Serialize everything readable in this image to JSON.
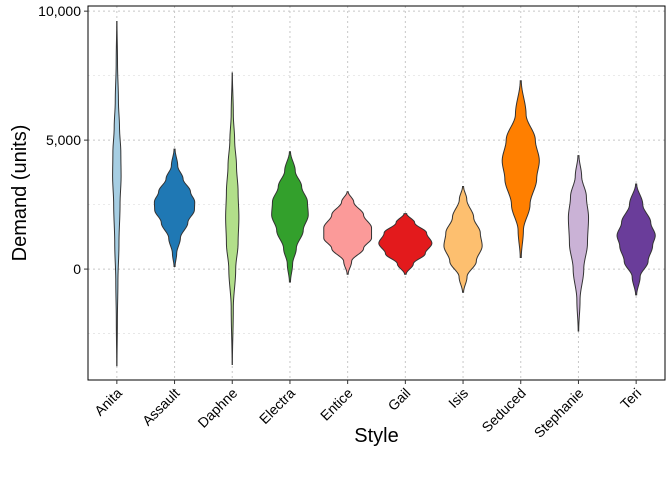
{
  "chart_data": {
    "type": "violin",
    "title": "",
    "xlabel": "Style",
    "ylabel": "Demand (units)",
    "ylim": [
      -4300,
      10200
    ],
    "yticks": [
      0,
      5000,
      10000
    ],
    "ytick_labels": [
      "0",
      "5,000",
      "10,000"
    ],
    "grid": true,
    "legend": "none",
    "categories": [
      "Anita",
      "Assault",
      "Daphne",
      "Electra",
      "Entice",
      "Gail",
      "Isis",
      "Seduced",
      "Stephanie",
      "Teri"
    ],
    "series": [
      {
        "category": "Anita",
        "color": "#a6cee3",
        "min": -3750,
        "max": 9600,
        "profile": [
          [
            -3750,
            0.005
          ],
          [
            -2000,
            0.02
          ],
          [
            -500,
            0.04
          ],
          [
            1000,
            0.08
          ],
          [
            2500,
            0.12
          ],
          [
            3600,
            0.16
          ],
          [
            4500,
            0.15
          ],
          [
            5500,
            0.1
          ],
          [
            6500,
            0.06
          ],
          [
            8000,
            0.025
          ],
          [
            9600,
            0.005
          ]
        ]
      },
      {
        "category": "Assault",
        "color": "#1f78b4",
        "min": 100,
        "max": 4650,
        "profile": [
          [
            100,
            0.02
          ],
          [
            600,
            0.08
          ],
          [
            1200,
            0.22
          ],
          [
            1800,
            0.5
          ],
          [
            2300,
            0.75
          ],
          [
            2600,
            0.76
          ],
          [
            3000,
            0.6
          ],
          [
            3500,
            0.32
          ],
          [
            4000,
            0.12
          ],
          [
            4650,
            0.02
          ]
        ]
      },
      {
        "category": "Daphne",
        "color": "#b2df8a",
        "min": -3700,
        "max": 7600,
        "profile": [
          [
            -3700,
            0.005
          ],
          [
            -1500,
            0.04
          ],
          [
            0,
            0.13
          ],
          [
            1000,
            0.22
          ],
          [
            2000,
            0.25
          ],
          [
            3000,
            0.22
          ],
          [
            4000,
            0.16
          ],
          [
            5000,
            0.09
          ],
          [
            6000,
            0.04
          ],
          [
            7600,
            0.005
          ]
        ]
      },
      {
        "category": "Electra",
        "color": "#33a02c",
        "min": -500,
        "max": 4550,
        "profile": [
          [
            -500,
            0.02
          ],
          [
            200,
            0.1
          ],
          [
            800,
            0.24
          ],
          [
            1500,
            0.5
          ],
          [
            2100,
            0.69
          ],
          [
            2600,
            0.66
          ],
          [
            3200,
            0.44
          ],
          [
            3800,
            0.2
          ],
          [
            4550,
            0.02
          ]
        ]
      },
      {
        "category": "Entice",
        "color": "#fb9a99",
        "min": -200,
        "max": 3000,
        "profile": [
          [
            -200,
            0.02
          ],
          [
            300,
            0.15
          ],
          [
            800,
            0.6
          ],
          [
            1200,
            0.9
          ],
          [
            1600,
            0.9
          ],
          [
            2100,
            0.6
          ],
          [
            2600,
            0.23
          ],
          [
            3000,
            0.02
          ]
        ]
      },
      {
        "category": "Gail",
        "color": "#e31a1c",
        "min": -200,
        "max": 2150,
        "profile": [
          [
            -200,
            0.03
          ],
          [
            200,
            0.3
          ],
          [
            600,
            0.75
          ],
          [
            1000,
            1.0
          ],
          [
            1400,
            0.8
          ],
          [
            1800,
            0.35
          ],
          [
            2150,
            0.05
          ]
        ]
      },
      {
        "category": "Isis",
        "color": "#fdbf6f",
        "min": -900,
        "max": 3200,
        "profile": [
          [
            -900,
            0.02
          ],
          [
            -300,
            0.15
          ],
          [
            300,
            0.5
          ],
          [
            900,
            0.72
          ],
          [
            1400,
            0.65
          ],
          [
            2000,
            0.4
          ],
          [
            2700,
            0.14
          ],
          [
            3200,
            0.02
          ]
        ]
      },
      {
        "category": "Seduced",
        "color": "#ff7f00",
        "min": 450,
        "max": 7300,
        "profile": [
          [
            450,
            0.02
          ],
          [
            1500,
            0.1
          ],
          [
            2500,
            0.35
          ],
          [
            3500,
            0.6
          ],
          [
            4200,
            0.7
          ],
          [
            5000,
            0.55
          ],
          [
            6000,
            0.2
          ],
          [
            7300,
            0.02
          ]
        ]
      },
      {
        "category": "Stephanie",
        "color": "#cab2d6",
        "min": -2400,
        "max": 4400,
        "profile": [
          [
            -2400,
            0.01
          ],
          [
            -1200,
            0.06
          ],
          [
            0,
            0.2
          ],
          [
            1000,
            0.34
          ],
          [
            2000,
            0.38
          ],
          [
            2800,
            0.3
          ],
          [
            3600,
            0.12
          ],
          [
            4400,
            0.02
          ]
        ]
      },
      {
        "category": "Teri",
        "color": "#6a3d9a",
        "min": -1000,
        "max": 3300,
        "profile": [
          [
            -1000,
            0.02
          ],
          [
            -300,
            0.15
          ],
          [
            300,
            0.45
          ],
          [
            900,
            0.62
          ],
          [
            1300,
            0.72
          ],
          [
            1800,
            0.55
          ],
          [
            2500,
            0.25
          ],
          [
            3300,
            0.02
          ]
        ]
      }
    ]
  }
}
